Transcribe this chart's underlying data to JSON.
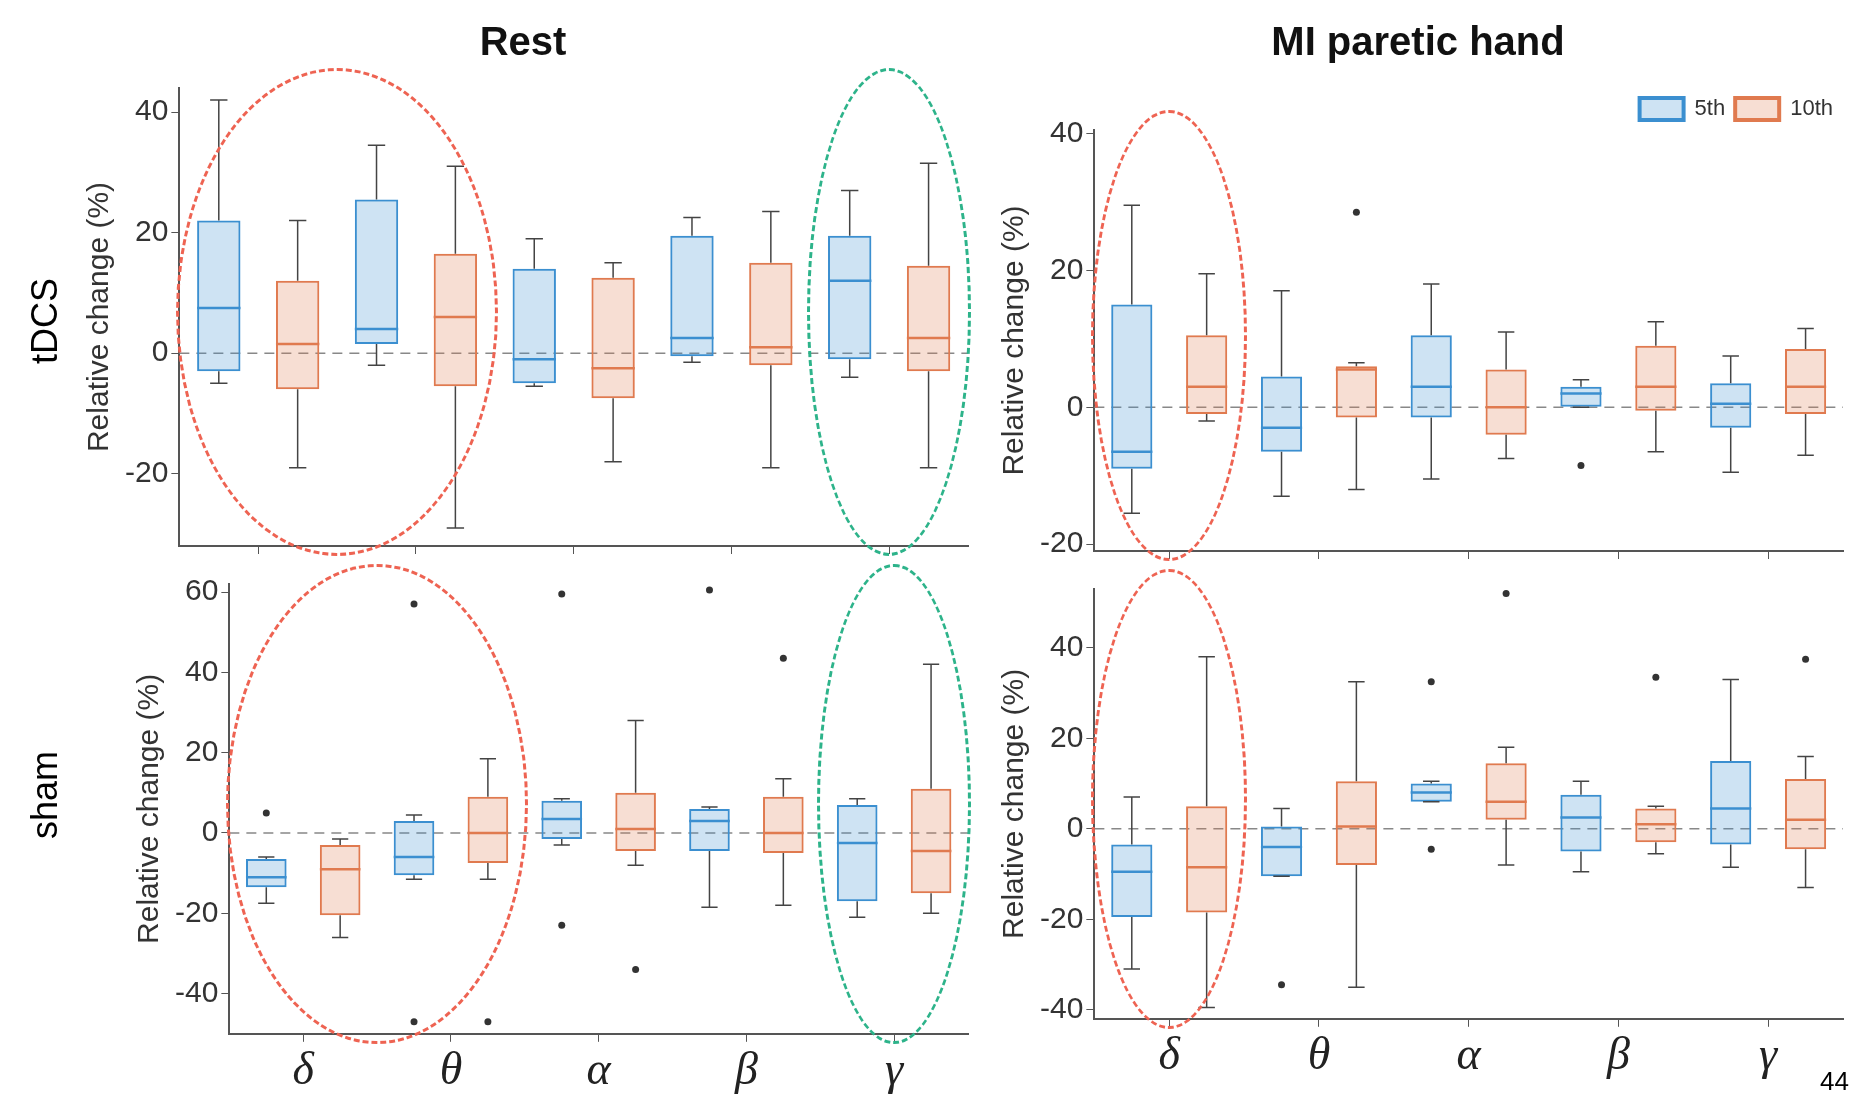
{
  "chart_data": [
    {
      "type": "box",
      "title": "Rest",
      "ylabel": "Relative change (%)",
      "categories": [
        null,
        null,
        null,
        null,
        null
      ],
      "ylim": [
        -32,
        44
      ],
      "yticks": [
        -20,
        0,
        20,
        40
      ],
      "tick_labels": "y",
      "annotations": [
        "tDCS"
      ],
      "ref_lines": [
        {
          "axis": "y",
          "value": 0,
          "line_style": "dashed",
          "color": "#888888"
        }
      ],
      "series": [
        {
          "color": "#3b8fd0",
          "boxes": [
            {
              "low": -5,
              "q1": -3,
              "median": 7.5,
              "q3": 22,
              "high": 42
            },
            {
              "low": -2,
              "q1": 1.5,
              "median": 4,
              "q3": 25.5,
              "high": 34.5
            },
            {
              "low": -5.5,
              "q1": -5,
              "median": -1,
              "q3": 14,
              "high": 19
            },
            {
              "low": -1.5,
              "q1": -0.5,
              "median": 2.5,
              "q3": 19.5,
              "high": 22.5
            },
            {
              "low": -4,
              "q1": -1,
              "median": 12,
              "q3": 19.5,
              "high": 27
            }
          ]
        },
        {
          "color": "#e07a4f",
          "boxes": [
            {
              "low": -19,
              "q1": -6,
              "median": 1.5,
              "q3": 12,
              "high": 22
            },
            {
              "low": -29,
              "q1": -5.5,
              "median": 6,
              "q3": 16.5,
              "high": 31
            },
            {
              "low": -18,
              "q1": -7.5,
              "median": -2.5,
              "q3": 12.5,
              "high": 15
            },
            {
              "low": -19,
              "q1": -2,
              "median": 1,
              "q3": 15,
              "high": 23.5
            },
            {
              "low": -19,
              "q1": -3,
              "median": 2.5,
              "q3": 14.5,
              "high": 31.5
            }
          ]
        }
      ]
    },
    {
      "type": "box",
      "title": "MI paretic hand",
      "ylabel": "Relative change (%)",
      "categories": [
        null,
        null,
        null,
        null,
        null
      ],
      "ylim": [
        -21,
        40.5
      ],
      "yticks": [
        -20,
        0,
        20,
        40
      ],
      "tick_labels": "y",
      "legend": "top right",
      "ref_lines": [
        {
          "axis": "y",
          "value": 0,
          "line_style": "dashed",
          "color": "#888888"
        }
      ],
      "series": [
        {
          "name": "5th",
          "color": "#3b8fd0",
          "boxes": [
            {
              "low": -15.5,
              "q1": -9,
              "median": -6.5,
              "q3": 15,
              "high": 29.5
            },
            {
              "low": -13,
              "q1": -6.5,
              "median": -3,
              "q3": 4.5,
              "high": 17
            },
            {
              "low": -10.5,
              "q1": -1.5,
              "median": 3,
              "q3": 10.5,
              "high": 18
            },
            {
              "low": 0,
              "q1": 0,
              "median": 2,
              "q3": 3,
              "high": 4,
              "outliers": [
                -8.5
              ]
            },
            {
              "low": -9.5,
              "q1": -3,
              "median": 0.5,
              "q3": 3.5,
              "high": 7.5
            }
          ]
        },
        {
          "name": "10th",
          "color": "#e07a4f",
          "boxes": [
            {
              "low": -2,
              "q1": -1,
              "median": 3,
              "q3": 10.5,
              "high": 19.5
            },
            {
              "low": -12,
              "q1": -1.5,
              "median": 5.5,
              "q3": 6,
              "high": 6.5,
              "outliers": [
                28.5
              ]
            },
            {
              "low": -7.5,
              "q1": -4,
              "median": 0,
              "q3": 5.5,
              "high": 11
            },
            {
              "low": -6.5,
              "q1": -0.5,
              "median": 3,
              "q3": 9,
              "high": 12.5
            },
            {
              "low": -7,
              "q1": -1,
              "median": 3,
              "q3": 8.5,
              "high": 11.5
            }
          ]
        }
      ]
    },
    {
      "type": "box",
      "ylabel": "Relative change (%)",
      "categories": [
        "δ",
        "θ",
        "α",
        "β",
        "γ"
      ],
      "ylim": [
        -50,
        62
      ],
      "yticks": [
        -40,
        -20,
        0,
        20,
        40,
        60
      ],
      "annotations": [
        "sham"
      ],
      "ref_lines": [
        {
          "axis": "y",
          "value": 0,
          "line_style": "dashed",
          "color": "#888888"
        }
      ],
      "series": [
        {
          "color": "#3b8fd0",
          "boxes": [
            {
              "low": -17.5,
              "q1": -13.5,
              "median": -11,
              "q3": -6.5,
              "high": -6,
              "outliers": [
                5
              ]
            },
            {
              "low": -11.5,
              "q1": -10.5,
              "median": -6,
              "q3": 3,
              "high": 4.5,
              "outliers": [
                57,
                -47
              ]
            },
            {
              "low": -3,
              "q1": -1.5,
              "median": 3.5,
              "q3": 8,
              "high": 8.5,
              "outliers": [
                59.5,
                -23
              ]
            },
            {
              "low": -18.5,
              "q1": -4.5,
              "median": 3,
              "q3": 6,
              "high": 6.5,
              "outliers": [
                60.5
              ]
            },
            {
              "low": -21,
              "q1": -17,
              "median": -2.5,
              "q3": 7,
              "high": 8.5
            }
          ]
        },
        {
          "color": "#e07a4f",
          "boxes": [
            {
              "low": -26,
              "q1": -20.5,
              "median": -9,
              "q3": -3,
              "high": -1.5
            },
            {
              "low": -11.5,
              "q1": -7.5,
              "median": 0,
              "q3": 9,
              "high": 18.5,
              "outliers": [
                -47
              ]
            },
            {
              "low": -8,
              "q1": -4.5,
              "median": 1,
              "q3": 10,
              "high": 28,
              "outliers": [
                -34
              ]
            },
            {
              "low": -18,
              "q1": -5,
              "median": 0,
              "q3": 9,
              "high": 13.5,
              "outliers": [
                43.5
              ]
            },
            {
              "low": -20,
              "q1": -15,
              "median": -4.5,
              "q3": 11,
              "high": 42
            }
          ]
        }
      ]
    },
    {
      "type": "box",
      "ylabel": "Relative change (%)",
      "categories": [
        "δ",
        "θ",
        "α",
        "β",
        "γ"
      ],
      "ylim": [
        -42,
        53
      ],
      "yticks": [
        -40,
        -20,
        0,
        20,
        40
      ],
      "annotations": [
        "44"
      ],
      "ref_lines": [
        {
          "axis": "y",
          "value": 0,
          "line_style": "dashed",
          "color": "#888888"
        }
      ],
      "series": [
        {
          "color": "#3b8fd0",
          "boxes": [
            {
              "low": -31,
              "q1": -19.5,
              "median": -9.5,
              "q3": -3.5,
              "high": 7
            },
            {
              "low": -10.5,
              "q1": -10.5,
              "median": -4,
              "q3": 0.5,
              "high": 4.5,
              "outliers": [
                -34.5
              ]
            },
            {
              "low": 6,
              "q1": 6,
              "median": 8,
              "q3": 10,
              "high": 10.5,
              "outliers": [
                32.5,
                -4.5
              ]
            },
            {
              "low": -9.5,
              "q1": -5,
              "median": 2.5,
              "q3": 7.5,
              "high": 10.5
            },
            {
              "low": -8.5,
              "q1": -3.5,
              "median": 4.5,
              "q3": 15,
              "high": 33
            }
          ]
        },
        {
          "color": "#e07a4f",
          "boxes": [
            {
              "low": -39.5,
              "q1": -18.5,
              "median": -8.5,
              "q3": 5,
              "high": 38
            },
            {
              "low": -35,
              "q1": -8,
              "median": 0.5,
              "q3": 10.5,
              "high": 32.5
            },
            {
              "low": -8,
              "q1": 2,
              "median": 6,
              "q3": 14.5,
              "high": 18,
              "outliers": [
                52
              ]
            },
            {
              "low": -5.5,
              "q1": -3,
              "median": 1,
              "q3": 4.5,
              "high": 5,
              "outliers": [
                33.5
              ]
            },
            {
              "low": -13,
              "q1": -4.5,
              "median": 2,
              "q3": 11,
              "high": 16,
              "outliers": [
                37.5
              ]
            }
          ]
        }
      ]
    }
  ]
}
